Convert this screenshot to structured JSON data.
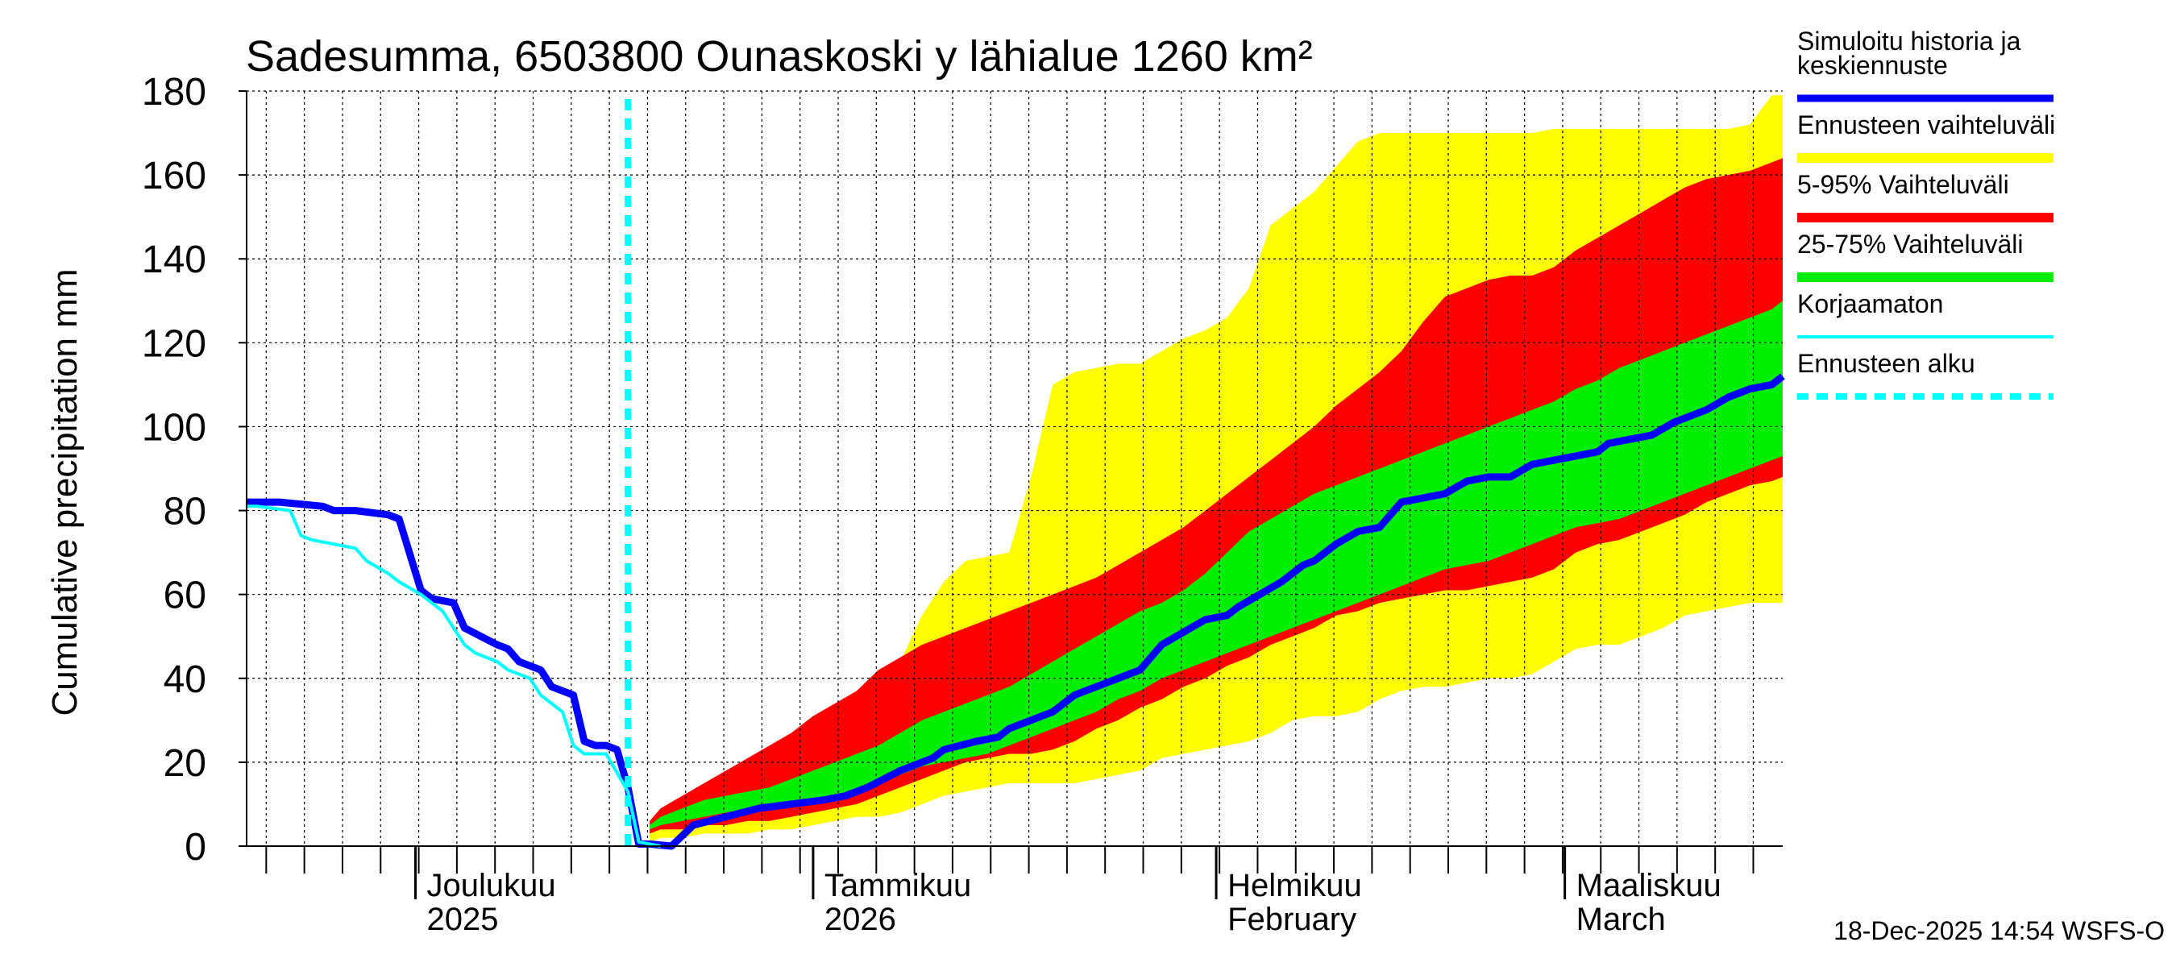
{
  "chart_data": {
    "type": "area",
    "title": "Sadesumma, 6503800 Ounaskoski y lähialue 1260 km²",
    "ylabel": "Cumulative precipitation   mm",
    "xlabel": "",
    "ylim": [
      0,
      180
    ],
    "yticks": [
      0,
      20,
      40,
      60,
      80,
      100,
      120,
      140,
      160,
      180
    ],
    "grid": true,
    "x_unit": "days since 2025-11-08",
    "xlim": [
      0,
      141
    ],
    "forecast_start_day": 35.0,
    "month_boundaries": [
      {
        "day": 15.5,
        "label1": "Joulukuu",
        "label2": "2025"
      },
      {
        "day": 52,
        "label1": "Tammikuu",
        "label2": "2026"
      },
      {
        "day": 89,
        "label1": "Helmikuu",
        "label2": "February"
      },
      {
        "day": 121,
        "label1": "Maaliskuu",
        "label2": "March"
      }
    ],
    "series": [
      {
        "name": "Ennusteen vaihteluväli",
        "kind": "band",
        "color": "#ffff00",
        "x": [
          37,
          38,
          40,
          42,
          44,
          46,
          48,
          50,
          52,
          54,
          56,
          58,
          60,
          62,
          64,
          66,
          68,
          70,
          72,
          74,
          76,
          78,
          80,
          82,
          84,
          86,
          88,
          90,
          92,
          94,
          96,
          98,
          100,
          102,
          104,
          106,
          108,
          110,
          112,
          114,
          116,
          118,
          120,
          122,
          124,
          126,
          128,
          130,
          132,
          134,
          136,
          138,
          140,
          141
        ],
        "lower": [
          1,
          2,
          2,
          3,
          3,
          3,
          4,
          4,
          5,
          6,
          7,
          7,
          8,
          10,
          12,
          13,
          14,
          15,
          15,
          15,
          15,
          16,
          17,
          18,
          21,
          22,
          23,
          24,
          25,
          27,
          30,
          31,
          31,
          32,
          35,
          37,
          38,
          38,
          39,
          40,
          40,
          41,
          44,
          47,
          48,
          48,
          50,
          52,
          55,
          56,
          57,
          58,
          58,
          58
        ],
        "upper": [
          3,
          6,
          10,
          14,
          17,
          20,
          23,
          26,
          30,
          34,
          36,
          38,
          44,
          55,
          63,
          68,
          69,
          70,
          88,
          110,
          113,
          114,
          115,
          115,
          118,
          121,
          123,
          126,
          133,
          148,
          152,
          156,
          162,
          168,
          170,
          170,
          170,
          170,
          170,
          170,
          170,
          170,
          171,
          171,
          171,
          171,
          171,
          171,
          171,
          171,
          171,
          172,
          179,
          179
        ]
      },
      {
        "name": "5-95% Vaihteluväli",
        "kind": "band",
        "color": "#ff0000",
        "x": [
          37,
          38,
          40,
          42,
          44,
          46,
          48,
          50,
          52,
          54,
          56,
          58,
          60,
          62,
          64,
          66,
          68,
          70,
          72,
          74,
          76,
          78,
          80,
          82,
          84,
          86,
          88,
          90,
          92,
          94,
          96,
          98,
          100,
          102,
          104,
          106,
          108,
          110,
          112,
          114,
          116,
          118,
          120,
          122,
          124,
          126,
          128,
          130,
          132,
          134,
          136,
          138,
          140,
          141
        ],
        "lower": [
          3,
          4,
          4,
          5,
          5,
          6,
          6,
          7,
          8,
          9,
          10,
          12,
          14,
          16,
          18,
          20,
          21,
          22,
          22,
          23,
          25,
          28,
          30,
          33,
          35,
          38,
          40,
          43,
          45,
          48,
          50,
          52,
          55,
          56,
          58,
          59,
          60,
          61,
          61,
          62,
          63,
          64,
          66,
          70,
          72,
          73,
          75,
          77,
          79,
          82,
          84,
          86,
          87,
          88
        ],
        "upper": [
          6,
          9,
          12,
          15,
          18,
          21,
          24,
          27,
          31,
          34,
          37,
          42,
          45,
          48,
          50,
          52,
          54,
          56,
          58,
          60,
          62,
          64,
          67,
          70,
          73,
          76,
          80,
          84,
          88,
          92,
          96,
          100,
          105,
          109,
          113,
          118,
          125,
          131,
          133,
          135,
          136,
          136,
          138,
          142,
          145,
          148,
          151,
          154,
          157,
          159,
          160,
          161,
          163,
          164
        ]
      },
      {
        "name": "25-75% Vaihteluväli",
        "kind": "band",
        "color": "#00ee00",
        "x": [
          37,
          38,
          40,
          42,
          44,
          46,
          48,
          50,
          52,
          54,
          56,
          58,
          60,
          62,
          64,
          66,
          68,
          70,
          72,
          74,
          76,
          78,
          80,
          82,
          84,
          86,
          88,
          90,
          92,
          94,
          96,
          98,
          100,
          102,
          104,
          106,
          108,
          110,
          112,
          114,
          116,
          118,
          120,
          122,
          124,
          126,
          128,
          130,
          132,
          134,
          136,
          138,
          140,
          141
        ],
        "lower": [
          4,
          5,
          6,
          7,
          8,
          9,
          10,
          10,
          11,
          12,
          13,
          15,
          17,
          19,
          20,
          21,
          22,
          24,
          26,
          28,
          30,
          32,
          35,
          37,
          40,
          42,
          44,
          46,
          48,
          50,
          52,
          54,
          56,
          58,
          60,
          62,
          64,
          66,
          67,
          68,
          70,
          72,
          74,
          76,
          77,
          78,
          80,
          82,
          84,
          86,
          88,
          90,
          92,
          93
        ],
        "upper": [
          5,
          7,
          9,
          11,
          12,
          13,
          14,
          16,
          18,
          20,
          22,
          24,
          27,
          30,
          32,
          34,
          36,
          38,
          41,
          44,
          47,
          50,
          53,
          56,
          58,
          61,
          65,
          70,
          75,
          78,
          81,
          84,
          86,
          88,
          90,
          92,
          94,
          96,
          98,
          100,
          102,
          104,
          106,
          109,
          111,
          114,
          116,
          118,
          120,
          122,
          124,
          126,
          128,
          130
        ]
      },
      {
        "name": "Simuloitu historia ja keskiennuste",
        "kind": "line",
        "color": "#0000ff",
        "width": 9,
        "x": [
          0,
          3,
          7,
          8,
          10,
          13,
          14,
          16,
          17,
          19,
          20,
          23,
          24,
          25,
          26,
          27,
          28,
          30,
          31,
          32,
          33,
          34,
          35,
          36,
          37,
          39,
          41,
          44,
          47,
          50,
          53,
          55,
          57,
          60,
          63,
          64,
          67,
          69,
          70,
          72,
          74,
          76,
          78,
          80,
          82,
          84,
          86,
          88,
          90,
          91,
          93,
          95,
          97,
          98,
          100,
          102,
          104,
          106,
          108,
          110,
          112,
          114,
          116,
          118,
          120,
          122,
          124,
          125,
          127,
          129,
          131,
          134,
          136,
          138,
          140,
          141
        ],
        "y": [
          82,
          82,
          81,
          80,
          80,
          79,
          78,
          61,
          59,
          58,
          52,
          48,
          47,
          44,
          43,
          42,
          38,
          36,
          25,
          24,
          24,
          23,
          14,
          0.5,
          0.5,
          0,
          5,
          7,
          9,
          10,
          11,
          12,
          14,
          18,
          21,
          23,
          25,
          26,
          28,
          30,
          32,
          36,
          38,
          40,
          42,
          48,
          51,
          54,
          55,
          57,
          60,
          63,
          67,
          68,
          72,
          75,
          76,
          82,
          83,
          84,
          87,
          88,
          88,
          91,
          92,
          93,
          94,
          96,
          97,
          98,
          101,
          104,
          107,
          109,
          110,
          112
        ]
      },
      {
        "name": "Korjaamaton",
        "kind": "line",
        "color": "#00ffff",
        "width": 4,
        "x": [
          0,
          1,
          4,
          5,
          6,
          8,
          10,
          11,
          13,
          14,
          16,
          18,
          20,
          21,
          23,
          24,
          26,
          27,
          28,
          29,
          30,
          31,
          33,
          35,
          36,
          38
        ],
        "y": [
          81,
          81,
          80,
          74,
          73,
          72,
          71,
          68,
          65,
          63,
          60,
          56,
          48,
          46,
          44,
          42,
          40,
          36,
          34,
          32,
          24,
          22,
          22,
          13,
          1,
          0
        ]
      },
      {
        "name": "Ennusteen alku",
        "kind": "vline",
        "color": "#00ffff",
        "x": 35.0
      }
    ]
  },
  "legend": [
    {
      "label": "Simuloitu historia ja\nkeskiennuste",
      "color": "#0000ff",
      "style": "thick"
    },
    {
      "label": "Ennusteen vaihteluväli",
      "color": "#ffff00",
      "style": "band"
    },
    {
      "label": "5-95% Vaihteluväli",
      "color": "#ff0000",
      "style": "band"
    },
    {
      "label": "25-75% Vaihteluväli",
      "color": "#00ee00",
      "style": "band"
    },
    {
      "label": "Korjaamaton",
      "color": "#00ffff",
      "style": "thin"
    },
    {
      "label": "Ennusteen alku",
      "color": "#00ffff",
      "style": "dashed"
    }
  ],
  "footer": "18-Dec-2025 14:54 WSFS-O"
}
